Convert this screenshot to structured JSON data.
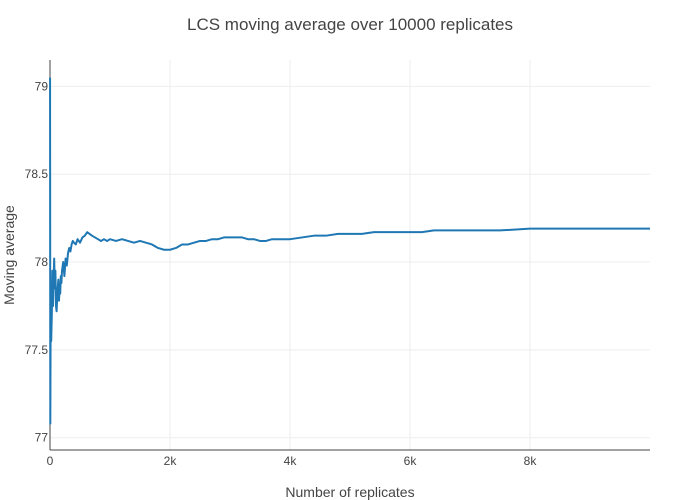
{
  "chart_data": {
    "type": "line",
    "title": "LCS moving average over 10000 replicates",
    "xlabel": "Number of replicates",
    "ylabel": "Moving average",
    "xlim": [
      0,
      10000
    ],
    "ylim": [
      76.93,
      79.15
    ],
    "x_ticks": [
      0,
      2000,
      4000,
      6000,
      8000
    ],
    "x_tick_labels": [
      "0",
      "2k",
      "4k",
      "6k",
      "8k"
    ],
    "y_ticks": [
      77,
      77.5,
      78,
      78.5,
      79
    ],
    "y_tick_labels": [
      "77",
      "77.5",
      "78",
      "78.5",
      "79"
    ],
    "grid": true,
    "legend": "none",
    "line_color": "#1f77b4",
    "series": [
      {
        "x": [
          1,
          5,
          10,
          15,
          20,
          30,
          40,
          50,
          60,
          70,
          80,
          90,
          100,
          110,
          120,
          130,
          140,
          150,
          160,
          170,
          180,
          190,
          200,
          220,
          240,
          260,
          280,
          300,
          320,
          340,
          360,
          380,
          400,
          430,
          460,
          500,
          540,
          580,
          620,
          660,
          700,
          750,
          800,
          850,
          900,
          950,
          1000,
          1100,
          1200,
          1300,
          1400,
          1500,
          1600,
          1700,
          1800,
          1900,
          2000,
          2100,
          2200,
          2300,
          2400,
          2500,
          2600,
          2700,
          2800,
          2900,
          3000,
          3100,
          3200,
          3300,
          3400,
          3500,
          3600,
          3700,
          3800,
          3900,
          4000,
          4200,
          4400,
          4600,
          4800,
          5000,
          5200,
          5400,
          5600,
          5800,
          6000,
          6200,
          6400,
          6600,
          6800,
          7000,
          7500,
          8000,
          8500,
          9000,
          9500,
          10000
        ],
        "values": [
          79.05,
          77.08,
          77.6,
          77.8,
          77.55,
          77.7,
          77.95,
          77.75,
          77.9,
          78.02,
          77.85,
          77.95,
          77.75,
          77.72,
          77.8,
          77.86,
          77.9,
          77.78,
          77.85,
          77.82,
          77.92,
          77.88,
          77.95,
          78.0,
          77.92,
          78.02,
          77.98,
          78.05,
          78.08,
          78.06,
          78.1,
          78.12,
          78.11,
          78.1,
          78.13,
          78.11,
          78.14,
          78.15,
          78.17,
          78.16,
          78.15,
          78.14,
          78.13,
          78.12,
          78.13,
          78.12,
          78.13,
          78.12,
          78.13,
          78.12,
          78.11,
          78.12,
          78.11,
          78.1,
          78.08,
          78.07,
          78.07,
          78.08,
          78.1,
          78.1,
          78.11,
          78.12,
          78.12,
          78.13,
          78.13,
          78.14,
          78.14,
          78.14,
          78.14,
          78.13,
          78.13,
          78.12,
          78.12,
          78.13,
          78.13,
          78.13,
          78.13,
          78.14,
          78.15,
          78.15,
          78.16,
          78.16,
          78.16,
          78.17,
          78.17,
          78.17,
          78.17,
          78.17,
          78.18,
          78.18,
          78.18,
          78.18,
          78.18,
          78.19,
          78.19,
          78.19,
          78.19,
          78.19
        ]
      }
    ]
  }
}
